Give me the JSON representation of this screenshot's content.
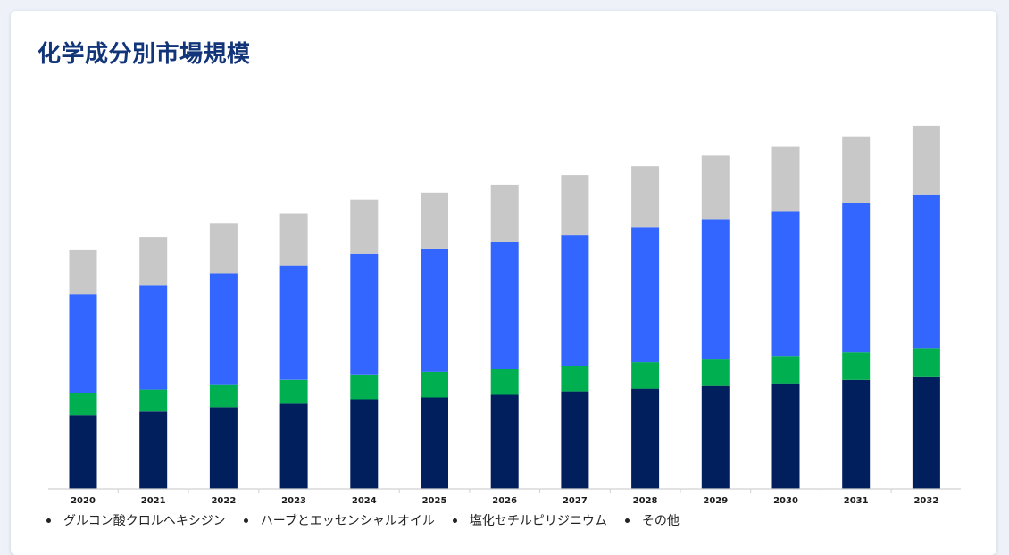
{
  "page": {
    "title": "化学成分別市場規模"
  },
  "chart_data": {
    "type": "bar",
    "stacked": true,
    "title": "化学成分別市場規模",
    "xlabel": "",
    "ylabel": "",
    "categories": [
      "2020",
      "2021",
      "2022",
      "2023",
      "2024",
      "2025",
      "2026",
      "2027",
      "2028",
      "2029",
      "2030",
      "2031",
      "2032"
    ],
    "series": [
      {
        "name": "グルコン酸クロルヘキシジン",
        "color": "#001f5c",
        "values": [
          84,
          88,
          93,
          97,
          102,
          104,
          107,
          111,
          114,
          117,
          120,
          124,
          128
        ]
      },
      {
        "name": "ハーブとエッセンシャルオイル",
        "color": "#00b050",
        "values": [
          25,
          25,
          26,
          27,
          28,
          29,
          29,
          29,
          30,
          31,
          31,
          31,
          32
        ]
      },
      {
        "name": "塩化セチルピリジニウム",
        "color": "#3366ff",
        "values": [
          112,
          119,
          126,
          130,
          137,
          140,
          145,
          149,
          154,
          159,
          164,
          170,
          175
        ]
      },
      {
        "name": "その他",
        "color": "#c8c8c8",
        "values": [
          51,
          54,
          57,
          59,
          62,
          64,
          65,
          68,
          69,
          72,
          74,
          76,
          78
        ]
      }
    ],
    "ylim": [
      0,
      420
    ],
    "grid": false,
    "legend_position": "bottom"
  }
}
